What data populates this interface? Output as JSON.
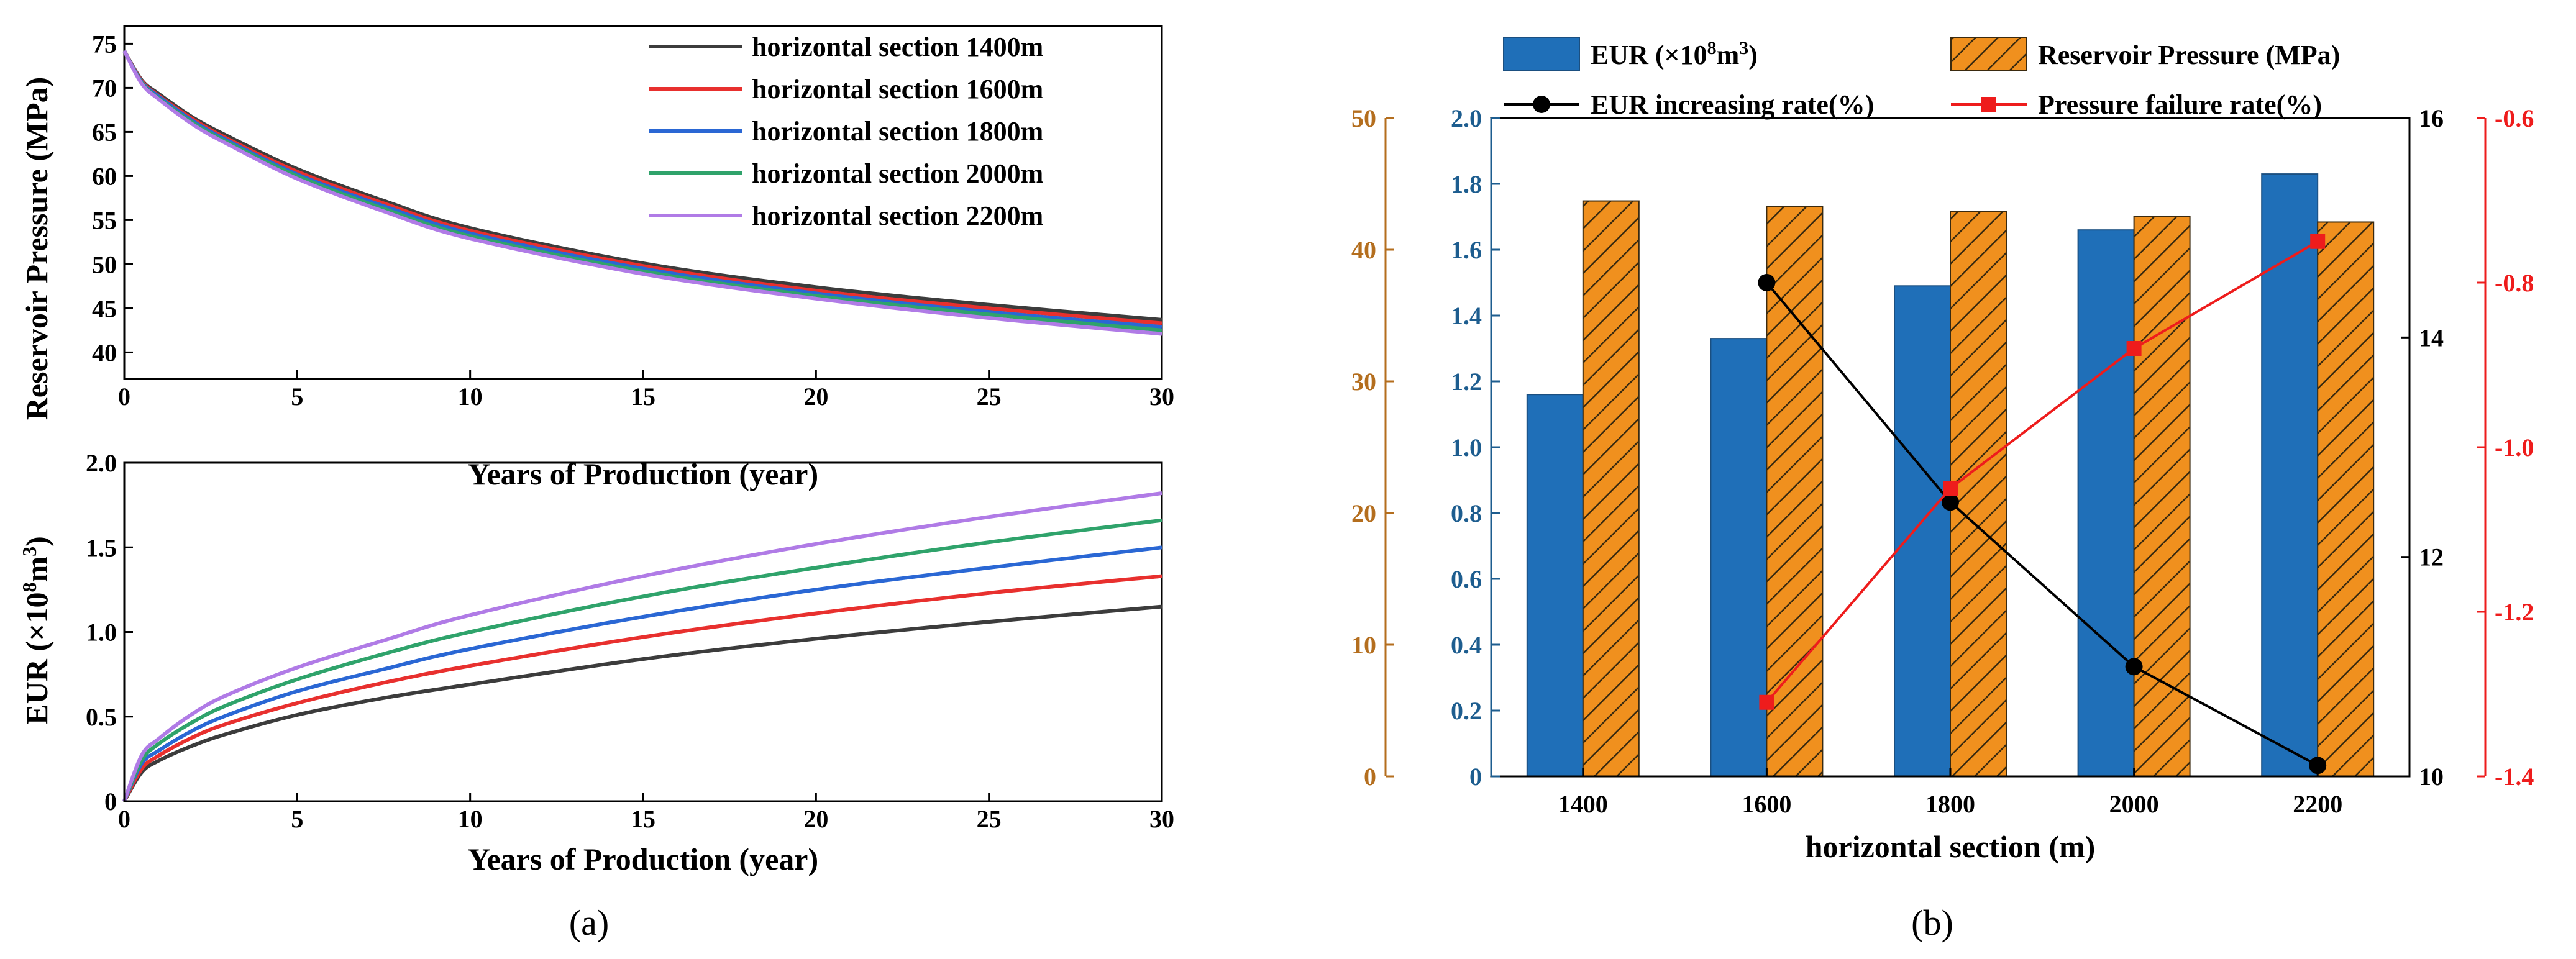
{
  "colors": {
    "c1400": "#3c3c3c",
    "c1600": "#e8302e",
    "c1800": "#2a67d4",
    "c2000": "#2fa36b",
    "c2200": "#b07be6",
    "eurBar": "#1f6fb8",
    "presBar": "#f0901e",
    "eurLine": "#000000",
    "presLine": "#ee1c1c",
    "axisBrown": "#b46e1e",
    "axisBlue": "#1d5d8f",
    "axisRed": "#ee1c1c"
  },
  "chart_data": [
    {
      "id": "a-top",
      "type": "line",
      "xlabel": "Years of Production (year)",
      "ylabel": "Reservoir Pressure (MPa)",
      "xlim": [
        0,
        30
      ],
      "ylim": [
        37,
        77
      ],
      "xticks": [
        "0",
        "5",
        "10",
        "15",
        "20",
        "25",
        "30"
      ],
      "yticks": [
        "40",
        "45",
        "50",
        "55",
        "60",
        "65",
        "70",
        "75"
      ],
      "x": [
        0,
        0.5,
        1,
        2,
        3,
        5,
        7.5,
        10,
        15,
        20,
        25,
        30
      ],
      "series": [
        {
          "name": "horizontal section 1400m",
          "color_key": "c1400",
          "values": [
            74.2,
            70.9,
            69.3,
            66.6,
            64.5,
            60.8,
            57.2,
            54.1,
            50.1,
            47.4,
            45.4,
            43.7
          ]
        },
        {
          "name": "horizontal section 1600m",
          "color_key": "c1600",
          "values": [
            74.2,
            70.8,
            69.1,
            66.4,
            64.2,
            60.5,
            56.9,
            53.8,
            49.8,
            47.0,
            45.0,
            43.3
          ]
        },
        {
          "name": "horizontal section 1800m",
          "color_key": "c1800",
          "values": [
            74.2,
            70.7,
            69.0,
            66.2,
            64.0,
            60.2,
            56.6,
            53.5,
            49.5,
            46.7,
            44.6,
            42.9
          ]
        },
        {
          "name": "horizontal section 2000m",
          "color_key": "c2000",
          "values": [
            74.2,
            70.6,
            68.8,
            66.0,
            63.8,
            60.0,
            56.3,
            53.2,
            49.2,
            46.4,
            44.3,
            42.5
          ]
        },
        {
          "name": "horizontal section 2200m",
          "color_key": "c2200",
          "values": [
            74.2,
            70.5,
            68.7,
            65.8,
            63.6,
            59.7,
            56.0,
            52.9,
            48.9,
            46.1,
            43.9,
            42.1
          ]
        }
      ],
      "legend_position": "top-right"
    },
    {
      "id": "a-bottom",
      "type": "line",
      "xlabel": "Years of Production (year)",
      "ylabel_pre": "EUR (×10",
      "ylabel_sup1": "8",
      "ylabel_mid": "m",
      "ylabel_sup2": "3",
      "ylabel_post": ")",
      "xlim": [
        0,
        30
      ],
      "ylim": [
        0,
        2.0
      ],
      "xticks": [
        "0",
        "5",
        "10",
        "15",
        "20",
        "25",
        "30"
      ],
      "yticks": [
        "0",
        "0.5",
        "1.0",
        "1.5",
        "2.0"
      ],
      "x": [
        0,
        0.5,
        1,
        2,
        3,
        5,
        7.5,
        10,
        15,
        20,
        25,
        30
      ],
      "series": [
        {
          "name": "horizontal section 1400m",
          "color_key": "c1400",
          "values": [
            0,
            0.17,
            0.24,
            0.33,
            0.4,
            0.51,
            0.61,
            0.69,
            0.84,
            0.96,
            1.06,
            1.15
          ]
        },
        {
          "name": "horizontal section 1600m",
          "color_key": "c1600",
          "values": [
            0,
            0.19,
            0.27,
            0.38,
            0.46,
            0.58,
            0.7,
            0.8,
            0.97,
            1.11,
            1.23,
            1.33
          ]
        },
        {
          "name": "horizontal section 1800m",
          "color_key": "c1800",
          "values": [
            0,
            0.22,
            0.3,
            0.42,
            0.51,
            0.65,
            0.78,
            0.9,
            1.09,
            1.25,
            1.38,
            1.5
          ]
        },
        {
          "name": "horizontal section 2000m",
          "color_key": "c2000",
          "values": [
            0,
            0.24,
            0.34,
            0.47,
            0.57,
            0.72,
            0.87,
            1.0,
            1.21,
            1.38,
            1.53,
            1.66
          ]
        },
        {
          "name": "horizontal section 2200m",
          "color_key": "c2200",
          "values": [
            0,
            0.27,
            0.37,
            0.52,
            0.63,
            0.79,
            0.95,
            1.1,
            1.33,
            1.52,
            1.68,
            1.82
          ]
        }
      ]
    },
    {
      "id": "b",
      "type": "bar",
      "xlabel": "horizontal section (m)",
      "categories": [
        "1400",
        "1600",
        "1800",
        "2000",
        "2200"
      ],
      "series": [
        {
          "name_pre": "EUR (×10",
          "name_sup1": "8",
          "name_mid": "m",
          "name_sup2": "3",
          "name_post": ")",
          "kind": "bar",
          "axis": "blue",
          "color_key": "eurBar",
          "values": [
            1.16,
            1.33,
            1.49,
            1.66,
            1.83
          ]
        },
        {
          "name": "Reservoir Pressure (MPa)",
          "kind": "bar-hatched",
          "axis": "brown",
          "color_key": "presBar",
          "values": [
            43.7,
            43.3,
            42.9,
            42.5,
            42.1
          ]
        },
        {
          "name": "EUR increasing rate(%)",
          "kind": "line",
          "axis": "black-right",
          "color_key": "eurLine",
          "values": [
            null,
            14.5,
            12.5,
            11.0,
            10.1
          ]
        },
        {
          "name": "Pressure failure rate(%)",
          "kind": "line",
          "axis": "red-right",
          "color_key": "presLine",
          "values": [
            null,
            -1.31,
            -1.05,
            -0.88,
            -0.75
          ]
        }
      ],
      "axes": {
        "brown": {
          "range": [
            0,
            50
          ],
          "ticks": [
            "0",
            "10",
            "20",
            "30",
            "40",
            "50"
          ]
        },
        "blue": {
          "range": [
            0,
            2.0
          ],
          "ticks": [
            "0",
            "0.2",
            "0.4",
            "0.6",
            "0.8",
            "1.0",
            "1.2",
            "1.4",
            "1.6",
            "1.8",
            "2.0"
          ]
        },
        "black-right": {
          "range": [
            10,
            16
          ],
          "ticks": [
            "10",
            "12",
            "14",
            "16"
          ]
        },
        "red-right": {
          "range": [
            -1.4,
            -0.6
          ],
          "ticks": [
            "-1.4",
            "-1.2",
            "-1.0",
            "-0.8",
            "-0.6"
          ]
        }
      }
    }
  ],
  "captions": {
    "a": "(a)",
    "b": "(b)"
  }
}
